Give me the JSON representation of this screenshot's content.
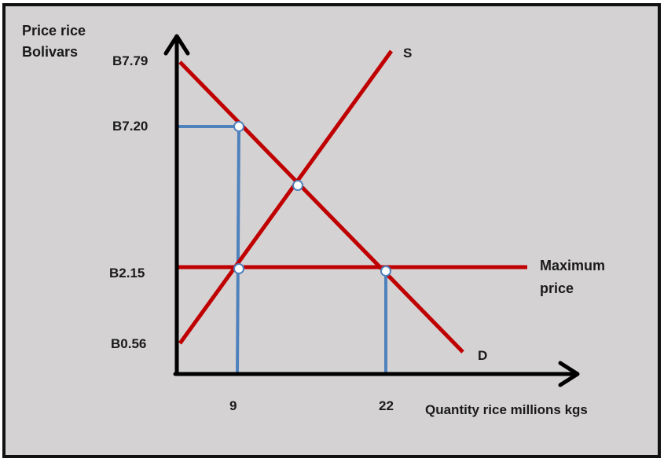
{
  "diagram": {
    "y_axis_title_line1": "Price rice",
    "y_axis_title_line2": "Bolivars",
    "x_axis_title": "Quantity rice millions kgs",
    "price_labels": {
      "p779": "B7.79",
      "p720": "B7.20",
      "p215": "B2.15",
      "p056": "B0.56"
    },
    "quantity_labels": {
      "q9": "9",
      "q22": "22"
    },
    "supply_label": "S",
    "demand_label": "D",
    "max_price_label_line1": "Maximum",
    "max_price_label_line2": "price"
  },
  "colors": {
    "background": "#d4d2d3",
    "border": "#111111",
    "axes": "#000000",
    "curves": "#c00000",
    "guide_lines": "#4f81bd",
    "points_fill": "#ffffff"
  }
}
